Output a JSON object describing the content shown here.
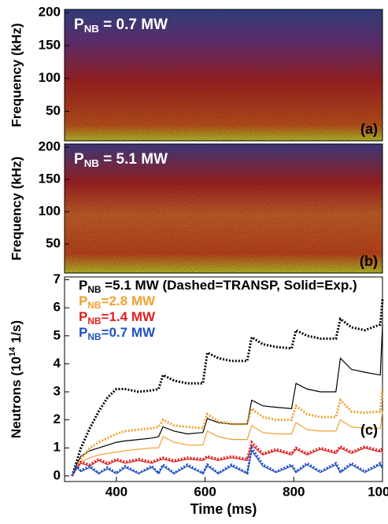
{
  "chart_data": [
    {
      "type": "spectrogram",
      "ylabel": "Frequency (kHz)",
      "ylim": [
        5,
        205
      ],
      "yticks": [
        50,
        100,
        150,
        200
      ],
      "annotation": {
        "symbol": "P",
        "subscript": "NB",
        "text": " = 0.7 MW"
      },
      "panel_label": "(a)"
    },
    {
      "type": "spectrogram",
      "ylabel": "Frequency (kHz)",
      "ylim": [
        5,
        205
      ],
      "yticks": [
        50,
        100,
        150,
        200
      ],
      "annotation": {
        "symbol": "P",
        "subscript": "NB",
        "text": " = 5.1 MW"
      },
      "panel_label": "(b)"
    },
    {
      "type": "line",
      "xlabel": "Time (ms)",
      "ylabel": {
        "text": "Neutrons (10",
        "superscript": "14",
        "text_after": " 1/s)"
      },
      "panel_label": "(c)",
      "xlim": [
        283,
        1000
      ],
      "xticks": [
        400,
        600,
        800,
        1000
      ],
      "ylim": [
        -0.2,
        7.1
      ],
      "yticks": [
        0,
        1,
        2,
        3,
        4,
        5,
        6,
        7
      ],
      "legend_entries": [
        {
          "symbol": "P",
          "subscript": "NB",
          "text": " =5.1 MW (Dashed=TRANSP, Solid=Exp.)",
          "color": "#000000"
        },
        {
          "symbol": "P",
          "subscript": "NB",
          "text": "=2.8 MW",
          "color": "#f0a030"
        },
        {
          "symbol": "P",
          "subscript": "NB",
          "text": "=1.4 MW",
          "color": "#e02020"
        },
        {
          "symbol": "P",
          "subscript": "NB",
          "text": "=0.7 MW",
          "color": "#2050c0"
        }
      ],
      "x": [
        300,
        310,
        320,
        340,
        360,
        380,
        400,
        420,
        450,
        480,
        495,
        505,
        530,
        560,
        595,
        605,
        630,
        660,
        695,
        705,
        730,
        760,
        795,
        805,
        830,
        860,
        895,
        905,
        930,
        960,
        995,
        1000
      ],
      "series": [
        {
          "color": "#000000",
          "dash": "dotted",
          "values": [
            0,
            0.5,
            1.0,
            1.7,
            2.3,
            2.8,
            3.1,
            3.1,
            3.0,
            3.05,
            3.1,
            3.6,
            3.4,
            3.3,
            3.3,
            4.4,
            4.2,
            4.1,
            4.1,
            4.95,
            4.7,
            4.6,
            4.55,
            5.2,
            5.0,
            4.9,
            4.9,
            5.6,
            5.3,
            5.2,
            5.4,
            6.3
          ]
        },
        {
          "color": "#000000",
          "dash": "solid",
          "values": [
            0,
            0.4,
            0.7,
            0.9,
            1.0,
            1.1,
            1.2,
            1.25,
            1.3,
            1.35,
            1.4,
            1.75,
            1.6,
            1.5,
            1.55,
            2.05,
            1.9,
            1.85,
            1.85,
            2.7,
            2.5,
            2.45,
            2.4,
            3.3,
            3.1,
            3.0,
            3.0,
            4.2,
            3.8,
            3.7,
            3.6,
            5.4
          ]
        },
        {
          "color": "#f0a030",
          "dash": "dotted",
          "values": [
            0,
            0.3,
            0.6,
            1.0,
            1.2,
            1.35,
            1.5,
            1.6,
            1.65,
            1.7,
            1.75,
            2.0,
            1.8,
            1.75,
            1.7,
            2.2,
            1.95,
            1.85,
            1.85,
            2.4,
            2.1,
            2.0,
            2.0,
            2.5,
            2.2,
            2.1,
            2.1,
            2.7,
            2.3,
            2.25,
            2.3,
            3.1
          ]
        },
        {
          "color": "#f0a030",
          "dash": "solid",
          "values": [
            0,
            0.3,
            0.5,
            0.65,
            0.75,
            0.8,
            0.85,
            0.9,
            0.95,
            1.0,
            1.0,
            1.4,
            1.2,
            1.1,
            1.1,
            1.6,
            1.4,
            1.3,
            1.3,
            1.8,
            1.55,
            1.5,
            1.5,
            1.9,
            1.65,
            1.6,
            1.6,
            2.0,
            1.75,
            1.7,
            1.7,
            2.3
          ]
        },
        {
          "color": "#e02020",
          "dash": "dotted",
          "values": [
            0,
            0.3,
            0.5,
            0.4,
            0.6,
            0.45,
            0.6,
            0.5,
            0.6,
            0.5,
            0.6,
            0.65,
            0.55,
            0.65,
            0.6,
            0.7,
            0.6,
            0.7,
            0.6,
            1.2,
            0.8,
            0.95,
            0.8,
            1.0,
            0.8,
            1.0,
            0.85,
            1.05,
            0.85,
            1.05,
            0.9,
            1.0
          ]
        },
        {
          "color": "#e02020",
          "dash": "solid",
          "values": [
            0,
            0.25,
            0.45,
            0.35,
            0.55,
            0.4,
            0.55,
            0.45,
            0.55,
            0.45,
            0.55,
            0.6,
            0.5,
            0.6,
            0.55,
            0.65,
            0.55,
            0.65,
            0.55,
            1.1,
            0.75,
            0.9,
            0.75,
            0.95,
            0.75,
            0.95,
            0.8,
            1.0,
            0.8,
            1.0,
            0.85,
            0.95
          ]
        },
        {
          "color": "#2050c0",
          "dash": "dotted",
          "values": [
            0,
            0.35,
            0.2,
            0.35,
            0.1,
            0.3,
            0.1,
            0.35,
            0.1,
            0.35,
            0.1,
            0.4,
            0.1,
            0.4,
            0.1,
            0.4,
            0.1,
            0.4,
            0.1,
            1.0,
            0.4,
            0.15,
            0.4,
            0.15,
            0.45,
            0.15,
            0.45,
            0.15,
            0.45,
            0.15,
            0.45,
            0.3
          ]
        },
        {
          "color": "#2050c0",
          "dash": "solid",
          "values": [
            0,
            0.3,
            0.15,
            0.3,
            0.08,
            0.25,
            0.08,
            0.3,
            0.08,
            0.3,
            0.08,
            0.35,
            0.08,
            0.35,
            0.08,
            0.35,
            0.08,
            0.35,
            0.08,
            0.9,
            0.35,
            0.12,
            0.35,
            0.12,
            0.4,
            0.12,
            0.4,
            0.12,
            0.4,
            0.12,
            0.4,
            0.25
          ]
        }
      ]
    }
  ]
}
